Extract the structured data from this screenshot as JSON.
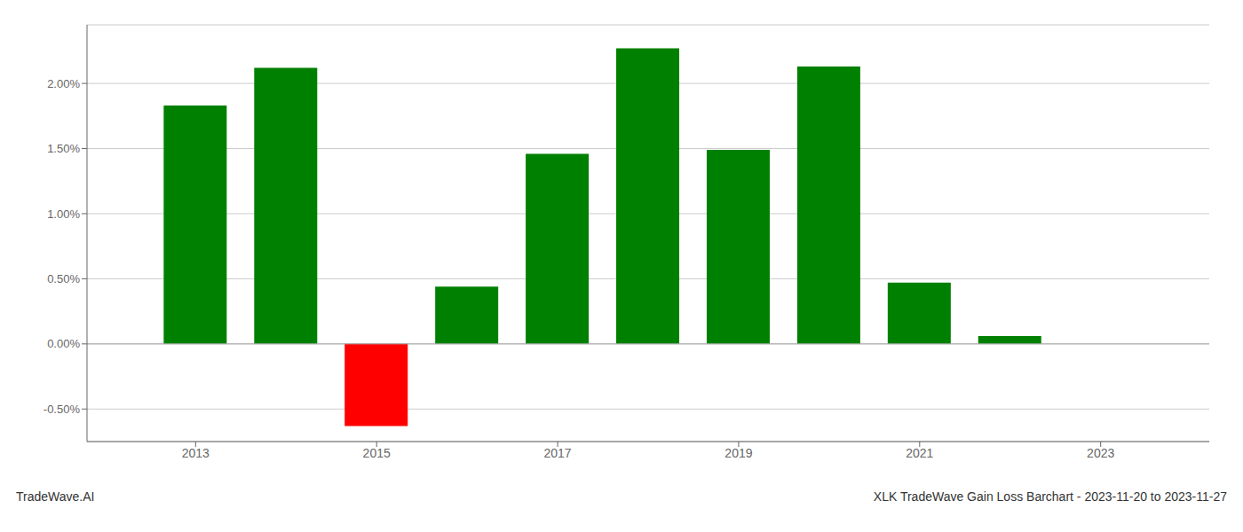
{
  "chart_data": {
    "type": "bar",
    "title": "XLK TradeWave Gain Loss Barchart - 2023-11-20 to 2023-11-27",
    "annotations": [
      "TradeWave.AI"
    ],
    "x": [
      2013,
      2014,
      2015,
      2016,
      2017,
      2018,
      2019,
      2020,
      2021,
      2022,
      2023
    ],
    "values": [
      1.83,
      2.12,
      -0.63,
      0.44,
      1.46,
      2.27,
      1.49,
      2.13,
      0.47,
      0.06,
      0.0
    ],
    "colors": [
      "#008000",
      "#008000",
      "#ff0000",
      "#008000",
      "#008000",
      "#008000",
      "#008000",
      "#008000",
      "#008000",
      "#008000",
      "#008000"
    ],
    "xlim": [
      2011.8,
      2024.2
    ],
    "xticks": [
      2013,
      2015,
      2017,
      2019,
      2021,
      2023
    ],
    "ylim": [
      -0.75,
      2.45
    ],
    "yticks": [
      {
        "value": -0.5,
        "label": "-0.50%"
      },
      {
        "value": 0.0,
        "label": "0.00%"
      },
      {
        "value": 0.5,
        "label": "0.50%"
      },
      {
        "value": 1.0,
        "label": "1.00%"
      },
      {
        "value": 1.5,
        "label": "1.50%"
      },
      {
        "value": 2.0,
        "label": "2.00%"
      }
    ],
    "grid": true
  }
}
